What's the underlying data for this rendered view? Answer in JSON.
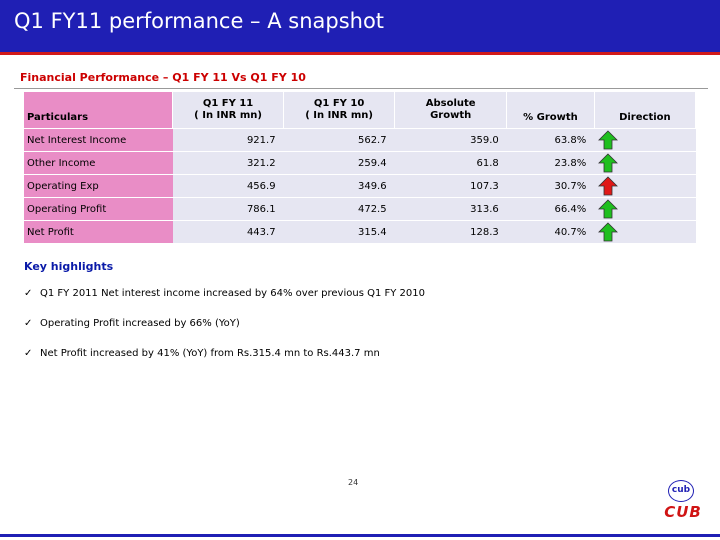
{
  "header": {
    "title": "Q1 FY11 performance – A snapshot"
  },
  "section": {
    "subtitle": "Financial Performance – Q1 FY 11 Vs Q1 FY 10"
  },
  "table": {
    "headers": {
      "particulars": "Particulars",
      "q1fy11_line1": "Q1 FY 11",
      "q1fy11_line2": "( In INR mn)",
      "q1fy10_line1": "Q1 FY 10",
      "q1fy10_line2": "( In INR mn)",
      "abs_line1": "Absolute",
      "abs_line2": "Growth",
      "growth": "% Growth",
      "direction": "Direction"
    },
    "rows": [
      {
        "label": "Net Interest Income",
        "q1fy11": "921.7",
        "q1fy10": "562.7",
        "absolute": "359.0",
        "growth": "63.8%",
        "arrow_color": "#1fbf1f"
      },
      {
        "label": "Other Income",
        "q1fy11": "321.2",
        "q1fy10": "259.4",
        "absolute": "61.8",
        "growth": "23.8%",
        "arrow_color": "#1fbf1f"
      },
      {
        "label": "Operating  Exp",
        "q1fy11": "456.9",
        "q1fy10": "349.6",
        "absolute": "107.3",
        "growth": "30.7%",
        "arrow_color": "#e01818"
      },
      {
        "label": "Operating Profit",
        "q1fy11": "786.1",
        "q1fy10": "472.5",
        "absolute": "313.6",
        "growth": "66.4%",
        "arrow_color": "#1fbf1f"
      },
      {
        "label": "Net Profit",
        "q1fy11": "443.7",
        "q1fy10": "315.4",
        "absolute": "128.3",
        "growth": "40.7%",
        "arrow_color": "#1fbf1f"
      }
    ]
  },
  "highlights": {
    "title": "Key highlights",
    "items": [
      "Q1 FY 2011 Net interest income increased by 64% over previous Q1 FY 2010",
      "Operating Profit increased by 66% (YoY)",
      "Net Profit increased by 41% (YoY) from Rs.315.4 mn to Rs.443.7 mn"
    ]
  },
  "footer": {
    "page_number": "24",
    "logo_text": "CUB",
    "emblem_text": "cub"
  },
  "colors": {
    "title_bar": "#1f1fb4",
    "accent_red": "#d11a1a",
    "particulars_pink": "#e98dc6",
    "cell_grey": "#e6e6f2",
    "up_green": "#1fbf1f",
    "up_red": "#e01818"
  }
}
